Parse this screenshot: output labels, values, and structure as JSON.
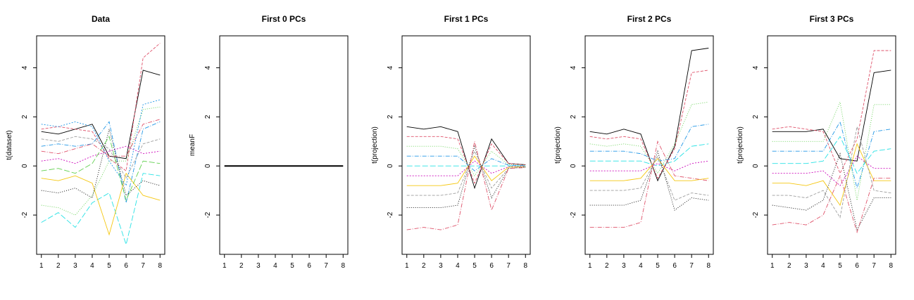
{
  "chart_data": [
    {
      "type": "line",
      "title": "Data",
      "ylabel": "t(dataset)",
      "x": [
        1,
        2,
        3,
        4,
        5,
        6,
        7,
        8
      ],
      "xticks": [
        "1",
        "2",
        "3",
        "4",
        "5",
        "6",
        "7",
        "8"
      ],
      "yticks": [
        "-2",
        "0",
        "2",
        "4"
      ],
      "ylim": [
        -3.6,
        5.3
      ],
      "series_style": "many overlapping dashed/solid lines, multiple colors",
      "series": [
        {
          "values": [
            1.4,
            1.3,
            1.5,
            1.7,
            0.4,
            0.3,
            3.9,
            3.7
          ]
        },
        {
          "values": [
            1.5,
            1.6,
            1.5,
            1.4,
            0.3,
            -0.2,
            4.4,
            5.0
          ]
        },
        {
          "values": [
            -1.6,
            -1.7,
            -2.0,
            -1.2,
            0.2,
            0.2,
            2.3,
            2.4
          ]
        },
        {
          "values": [
            0.8,
            0.9,
            0.8,
            0.9,
            1.8,
            -1.5,
            1.5,
            1.8
          ]
        },
        {
          "values": [
            -2.3,
            -1.9,
            -2.5,
            -1.5,
            -1.1,
            -3.2,
            -0.3,
            -0.4
          ]
        },
        {
          "values": [
            0.2,
            0.3,
            0.1,
            0.4,
            0.6,
            0.8,
            0.5,
            0.6
          ]
        },
        {
          "values": [
            -0.5,
            -0.6,
            -0.4,
            -0.7,
            -2.8,
            -0.3,
            -1.2,
            -1.4
          ]
        },
        {
          "values": [
            1.1,
            1.0,
            1.2,
            1.1,
            0.7,
            -0.5,
            0.9,
            1.1
          ]
        },
        {
          "values": [
            -1.0,
            -1.1,
            -0.9,
            -1.3,
            1.5,
            -1.2,
            -0.6,
            -0.8
          ]
        },
        {
          "values": [
            0.6,
            0.5,
            0.7,
            0.9,
            0.4,
            0.4,
            1.7,
            1.9
          ]
        },
        {
          "values": [
            -0.2,
            -0.1,
            -0.3,
            0.1,
            1.2,
            -1.4,
            0.2,
            0.1
          ]
        },
        {
          "values": [
            1.7,
            1.6,
            1.8,
            1.6,
            0.2,
            -0.8,
            2.5,
            2.7
          ]
        }
      ]
    },
    {
      "type": "line",
      "title": "First 0 PCs",
      "ylabel": "meanF",
      "x": [
        1,
        2,
        3,
        4,
        5,
        6,
        7,
        8
      ],
      "xticks": [
        "1",
        "2",
        "3",
        "4",
        "5",
        "6",
        "7",
        "8"
      ],
      "yticks": [
        "-2",
        "0",
        "2",
        "4"
      ],
      "ylim": [
        -3.6,
        5.3
      ],
      "series": [
        {
          "values": [
            0,
            0,
            0,
            0,
            0,
            0,
            0,
            0
          ]
        }
      ]
    },
    {
      "type": "line",
      "title": "First 1 PCs",
      "ylabel": "t(projection)",
      "x": [
        1,
        2,
        3,
        4,
        5,
        6,
        7,
        8
      ],
      "xticks": [
        "1",
        "2",
        "3",
        "4",
        "5",
        "6",
        "7",
        "8"
      ],
      "yticks": [
        "-2",
        "0",
        "2",
        "4"
      ],
      "ylim": [
        -3.6,
        5.3
      ],
      "series_style": "many overlapping dashed/solid lines, multiple colors",
      "series": [
        {
          "values": [
            1.6,
            1.5,
            1.6,
            1.4,
            -0.9,
            1.1,
            0.1,
            0.05
          ]
        },
        {
          "values": [
            1.2,
            1.2,
            1.2,
            1.1,
            -0.7,
            0.9,
            0.1,
            0.04
          ]
        },
        {
          "values": [
            0.8,
            0.8,
            0.8,
            0.7,
            -0.4,
            0.6,
            0.05,
            0.03
          ]
        },
        {
          "values": [
            0.4,
            0.4,
            0.4,
            0.4,
            -0.2,
            0.3,
            0.03,
            0.01
          ]
        },
        {
          "values": [
            0.0,
            0.0,
            0.0,
            0.0,
            0.0,
            0.0,
            0.0,
            0.0
          ]
        },
        {
          "values": [
            -0.4,
            -0.4,
            -0.4,
            -0.4,
            0.2,
            -0.3,
            -0.03,
            -0.01
          ]
        },
        {
          "values": [
            -0.8,
            -0.8,
            -0.8,
            -0.7,
            0.4,
            -0.6,
            -0.05,
            -0.03
          ]
        },
        {
          "values": [
            -1.2,
            -1.2,
            -1.2,
            -1.1,
            0.6,
            -0.9,
            -0.1,
            -0.04
          ]
        },
        {
          "values": [
            -1.7,
            -1.7,
            -1.7,
            -1.6,
            0.8,
            -1.3,
            -0.1,
            -0.05
          ]
        },
        {
          "values": [
            -2.6,
            -2.5,
            -2.6,
            -2.4,
            1.0,
            -1.8,
            -0.1,
            -0.07
          ]
        }
      ]
    },
    {
      "type": "line",
      "title": "First 2 PCs",
      "ylabel": "t(projection)",
      "x": [
        1,
        2,
        3,
        4,
        5,
        6,
        7,
        8
      ],
      "xticks": [
        "1",
        "2",
        "3",
        "4",
        "5",
        "6",
        "7",
        "8"
      ],
      "yticks": [
        "-2",
        "0",
        "2",
        "4"
      ],
      "ylim": [
        -3.6,
        5.3
      ],
      "series_style": "many overlapping dashed/solid lines, multiple colors",
      "series": [
        {
          "values": [
            1.4,
            1.3,
            1.5,
            1.3,
            -0.6,
            0.8,
            4.7,
            4.8
          ]
        },
        {
          "values": [
            1.2,
            1.1,
            1.2,
            1.1,
            -0.5,
            0.7,
            3.8,
            3.9
          ]
        },
        {
          "values": [
            0.9,
            0.8,
            0.9,
            0.8,
            -0.3,
            0.9,
            2.5,
            2.6
          ]
        },
        {
          "values": [
            0.6,
            0.6,
            0.6,
            0.5,
            0.2,
            0.3,
            1.6,
            1.7
          ]
        },
        {
          "values": [
            0.2,
            0.2,
            0.2,
            0.2,
            0.0,
            0.2,
            0.8,
            0.9
          ]
        },
        {
          "values": [
            -0.2,
            -0.2,
            -0.2,
            -0.2,
            0.1,
            -0.2,
            0.1,
            0.2
          ]
        },
        {
          "values": [
            -0.6,
            -0.6,
            -0.6,
            -0.5,
            0.3,
            -0.6,
            -0.6,
            -0.5
          ]
        },
        {
          "values": [
            -1.0,
            -1.0,
            -1.0,
            -0.9,
            0.4,
            -1.4,
            -1.1,
            -1.2
          ]
        },
        {
          "values": [
            -1.6,
            -1.6,
            -1.6,
            -1.4,
            0.6,
            -1.8,
            -1.3,
            -1.4
          ]
        },
        {
          "values": [
            -2.5,
            -2.5,
            -2.5,
            -2.3,
            1.0,
            -0.4,
            -0.5,
            -0.6
          ]
        }
      ]
    },
    {
      "type": "line",
      "title": "First 3 PCs",
      "ylabel": "t(projection)",
      "x": [
        1,
        2,
        3,
        4,
        5,
        6,
        7,
        8
      ],
      "xticks": [
        "1",
        "2",
        "3",
        "4",
        "5",
        "6",
        "7",
        "8"
      ],
      "yticks": [
        "-2",
        "0",
        "2",
        "4"
      ],
      "ylim": [
        -3.6,
        5.3
      ],
      "series_style": "many overlapping dashed/solid lines, multiple colors",
      "series": [
        {
          "values": [
            1.4,
            1.4,
            1.4,
            1.5,
            0.3,
            0.2,
            3.8,
            3.9
          ]
        },
        {
          "values": [
            1.5,
            1.6,
            1.5,
            1.4,
            -0.3,
            1.1,
            4.7,
            4.7
          ]
        },
        {
          "values": [
            1.0,
            1.0,
            1.0,
            1.0,
            2.6,
            -1.4,
            2.5,
            2.5
          ]
        },
        {
          "values": [
            0.6,
            0.6,
            0.6,
            0.6,
            1.8,
            -0.9,
            1.4,
            1.5
          ]
        },
        {
          "values": [
            0.1,
            0.1,
            0.1,
            0.2,
            1.2,
            -0.3,
            0.6,
            0.7
          ]
        },
        {
          "values": [
            -0.3,
            -0.3,
            -0.3,
            -0.2,
            -0.8,
            0.4,
            -0.1,
            -0.1
          ]
        },
        {
          "values": [
            -0.7,
            -0.7,
            -0.8,
            -0.6,
            -1.6,
            0.9,
            -0.6,
            -0.6
          ]
        },
        {
          "values": [
            -1.2,
            -1.2,
            -1.3,
            -1.0,
            -2.1,
            1.6,
            -1.0,
            -1.1
          ]
        },
        {
          "values": [
            -1.6,
            -1.7,
            -1.8,
            -1.4,
            0.5,
            -2.6,
            -1.3,
            -1.3
          ]
        },
        {
          "values": [
            -2.4,
            -2.3,
            -2.4,
            -2.0,
            -0.4,
            -2.7,
            -0.5,
            -0.5
          ]
        }
      ]
    }
  ]
}
